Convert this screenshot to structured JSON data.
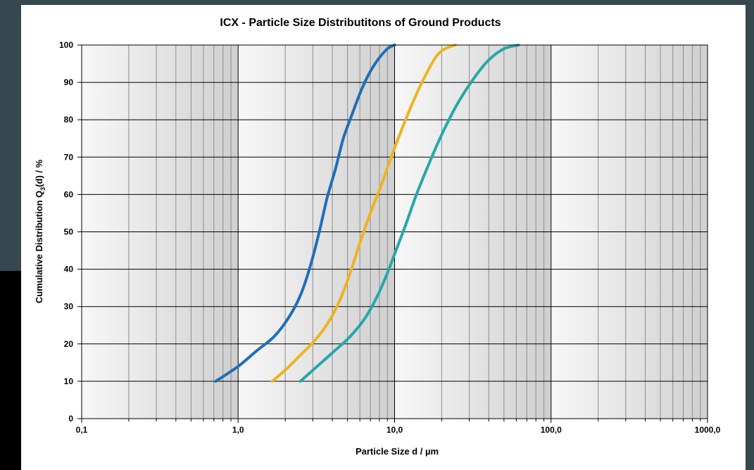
{
  "chart_data": {
    "type": "line",
    "title": "ICX - Particle Size Distributitons of Ground Products",
    "xlabel": "Particle Size d / µm",
    "ylabel_parts": [
      "Cumulative Distribution Q",
      "3",
      "(d) / %"
    ],
    "x_scale": "log",
    "xlim": [
      0.1,
      1000
    ],
    "ylim": [
      0,
      100
    ],
    "x_ticks": [
      {
        "value": 0.1,
        "label": "0,1"
      },
      {
        "value": 1,
        "label": "1,0"
      },
      {
        "value": 10,
        "label": "10,0"
      },
      {
        "value": 100,
        "label": "100,0"
      },
      {
        "value": 1000,
        "label": "1000,0"
      }
    ],
    "y_ticks": [
      0,
      10,
      20,
      30,
      40,
      50,
      60,
      70,
      80,
      90,
      100
    ],
    "grid": true,
    "series": [
      {
        "color": "#1f6fb8",
        "x": [
          0.72,
          1.0,
          1.3,
          1.7,
          2.1,
          2.5,
          2.9,
          3.3,
          3.7,
          4.2,
          4.7,
          5.3,
          6.0,
          6.8,
          7.8,
          9.0,
          10.0
        ],
        "y": [
          10,
          14,
          18,
          22,
          27,
          33,
          41,
          50,
          59,
          67,
          75,
          81,
          87,
          92,
          96,
          99,
          100
        ]
      },
      {
        "color": "#efb320",
        "x": [
          1.65,
          2.0,
          2.5,
          3.1,
          3.8,
          4.5,
          5.2,
          6.0,
          7.0,
          8.3,
          9.7,
          11.5,
          13.5,
          15.8,
          18.5,
          21.0,
          24.5
        ],
        "y": [
          10,
          13,
          17,
          21,
          26,
          32,
          39,
          47,
          55,
          63,
          71,
          79,
          86,
          92,
          97,
          99,
          100
        ]
      },
      {
        "color": "#26a8a8",
        "x": [
          2.5,
          3.2,
          4.1,
          5.2,
          6.5,
          7.8,
          9.0,
          10.2,
          11.8,
          13.8,
          16.5,
          20.0,
          25.0,
          32.0,
          40.0,
          50.0,
          62.0
        ],
        "y": [
          10,
          14,
          18,
          22,
          27,
          33,
          39,
          45,
          52,
          60,
          68,
          76,
          84,
          91,
          96,
          99,
          100
        ]
      }
    ]
  }
}
